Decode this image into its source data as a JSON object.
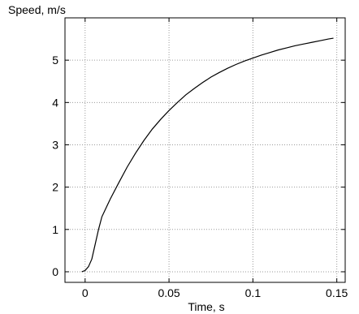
{
  "chart_data": {
    "type": "line",
    "title": "",
    "xlabel": "Time, s",
    "ylabel": "Speed, m/s",
    "xlim": [
      -0.012,
      0.155
    ],
    "ylim": [
      -0.25,
      6.0
    ],
    "xticks": [
      0,
      0.05,
      0.1,
      0.15
    ],
    "xtick_labels": [
      "0",
      "0.05",
      "0.1",
      "0.15"
    ],
    "yticks": [
      0,
      1,
      2,
      3,
      4,
      5
    ],
    "ytick_labels": [
      "0",
      "1",
      "2",
      "3",
      "4",
      "5"
    ],
    "grid": true,
    "line_color": "#000000",
    "series": [
      {
        "x": [
          -0.002,
          0.0,
          0.002,
          0.004,
          0.006,
          0.008,
          0.01,
          0.015,
          0.02,
          0.025,
          0.03,
          0.035,
          0.04,
          0.045,
          0.05,
          0.055,
          0.06,
          0.065,
          0.07,
          0.075,
          0.08,
          0.085,
          0.09,
          0.095,
          0.1,
          0.105,
          0.11,
          0.115,
          0.12,
          0.125,
          0.13,
          0.135,
          0.14,
          0.145,
          0.148
        ],
        "y": [
          0.0,
          0.03,
          0.12,
          0.3,
          0.65,
          1.0,
          1.3,
          1.72,
          2.1,
          2.47,
          2.8,
          3.1,
          3.37,
          3.6,
          3.81,
          4.0,
          4.18,
          4.33,
          4.47,
          4.6,
          4.71,
          4.81,
          4.9,
          4.98,
          5.05,
          5.12,
          5.18,
          5.24,
          5.29,
          5.34,
          5.38,
          5.42,
          5.46,
          5.5,
          5.52
        ]
      }
    ]
  }
}
